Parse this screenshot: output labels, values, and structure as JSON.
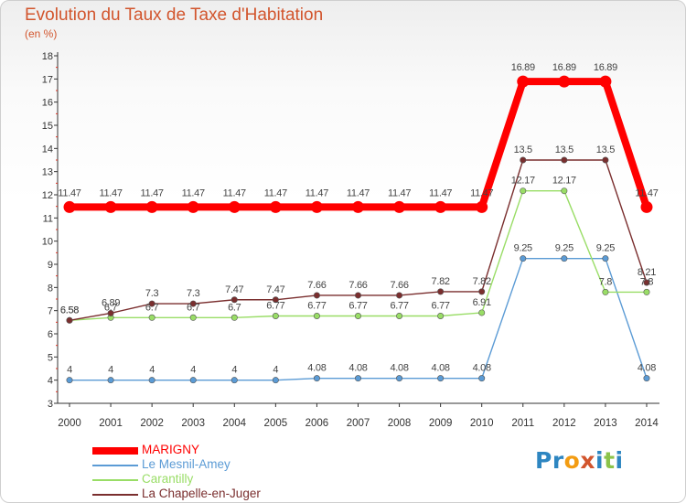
{
  "title": "Evolution du Taux de Taxe d'Habitation",
  "subtitle": "(en %)",
  "logo": {
    "text": "Proxiti",
    "letters": [
      {
        "ch": "P",
        "color": "#2e86c1"
      },
      {
        "ch": "r",
        "color": "#2e86c1"
      },
      {
        "ch": "o",
        "color": "#f39c12"
      },
      {
        "ch": "x",
        "color": "#d2552d"
      },
      {
        "ch": "i",
        "color": "#2e86c1"
      },
      {
        "ch": "t",
        "color": "#8bc34a"
      },
      {
        "ch": "i",
        "color": "#2e86c1"
      }
    ]
  },
  "chart_data": {
    "type": "line",
    "x": [
      "2000",
      "2001",
      "2002",
      "2003",
      "2004",
      "2005",
      "2006",
      "2007",
      "2008",
      "2009",
      "2010",
      "2011",
      "2012",
      "2013",
      "2014"
    ],
    "ylim": [
      3,
      18
    ],
    "yticks": [
      3,
      4,
      5,
      6,
      7,
      8,
      9,
      10,
      11,
      12,
      13,
      14,
      15,
      16,
      17,
      18
    ],
    "grid": false,
    "legend": "bottom-left",
    "series": [
      {
        "name": "MARIGNY",
        "color": "#ff0000",
        "label_color": "#444444",
        "values": [
          11.47,
          11.47,
          11.47,
          11.47,
          11.47,
          11.47,
          11.47,
          11.47,
          11.47,
          11.47,
          11.47,
          16.89,
          16.89,
          16.89,
          11.47
        ],
        "labels": [
          "11.47",
          "11.47",
          "11.47",
          "11.47",
          "11.47",
          "11.47",
          "11.47",
          "11.47",
          "11.47",
          "11.47",
          "11.47",
          "16.89",
          "16.89",
          "16.89",
          "11.47"
        ]
      },
      {
        "name": "Le Mesnil-Amey",
        "color": "#5b9bd5",
        "label_color": "#444444",
        "values": [
          4,
          4,
          4,
          4,
          4,
          4,
          4.08,
          4.08,
          4.08,
          4.08,
          4.08,
          9.25,
          9.25,
          9.25,
          4.08
        ],
        "labels": [
          "4",
          "4",
          "4",
          "4",
          "4",
          "4",
          "4.08",
          "4.08",
          "4.08",
          "4.08",
          "4.08",
          "9.25",
          "9.25",
          "9.25",
          "4.08"
        ]
      },
      {
        "name": "Carantilly",
        "color": "#99dd66",
        "label_color": "#444444",
        "values": [
          6.58,
          6.7,
          6.7,
          6.7,
          6.7,
          6.77,
          6.77,
          6.77,
          6.77,
          6.77,
          6.91,
          12.17,
          12.17,
          7.8,
          7.8
        ],
        "labels": [
          "6.58",
          "6.7",
          "6.7",
          "6.7",
          "6.7",
          "6.77",
          "6.77",
          "6.77",
          "6.77",
          "6.77",
          "6.91",
          "12.17",
          "12.17",
          "7.8",
          "7.8"
        ]
      },
      {
        "name": "La Chapelle-en-Juger",
        "color": "#7a2e2e",
        "label_color": "#444444",
        "values": [
          6.58,
          6.89,
          7.3,
          7.3,
          7.47,
          7.47,
          7.66,
          7.66,
          7.66,
          7.82,
          7.82,
          13.5,
          13.5,
          13.5,
          8.21
        ],
        "labels": [
          "6.58",
          "6.89",
          "7.3",
          "7.3",
          "7.47",
          "7.47",
          "7.66",
          "7.66",
          "7.66",
          "7.82",
          "7.82",
          "13.5",
          "13.5",
          "13.5",
          "8.21"
        ]
      }
    ]
  }
}
